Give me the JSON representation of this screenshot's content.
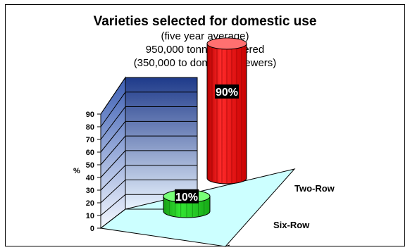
{
  "chart_data": {
    "type": "bar",
    "title": "Varieties selected for domestic use",
    "subtitle_lines": [
      "(five year average)",
      "950,000 tonnes delivered",
      "(350,000 to domestic brewers)"
    ],
    "ylabel": "%",
    "ylim": [
      0,
      90
    ],
    "yticks": [
      0,
      10,
      20,
      30,
      40,
      50,
      60,
      70,
      80,
      90
    ],
    "categories": [
      "Six-Row",
      "Two-Row"
    ],
    "values": [
      10,
      90
    ],
    "data_labels": [
      "10%",
      "90%"
    ],
    "colors": {
      "Six-Row": "#22cc22",
      "Two-Row": "#ee1111"
    },
    "grid": true,
    "style": "3d-cylinder"
  }
}
